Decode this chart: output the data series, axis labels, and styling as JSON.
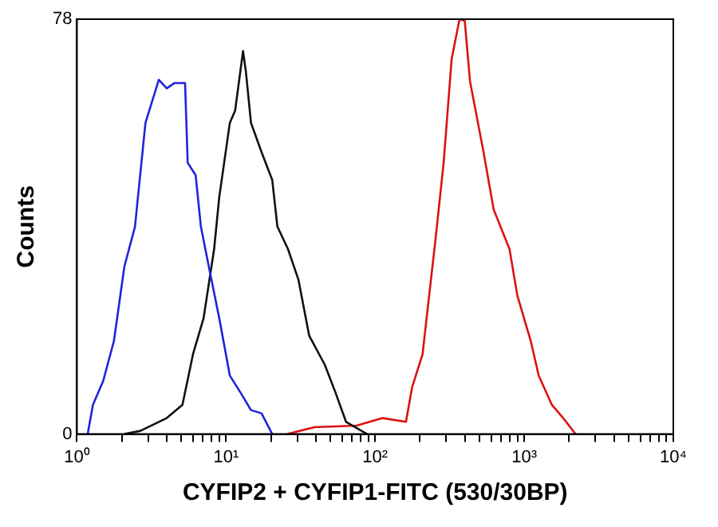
{
  "chart_data": {
    "type": "line",
    "xlabel": "CYFIP2 + CYFIP1-FITC (530/30BP)",
    "ylabel": "Counts",
    "log": "x",
    "xlim": [
      1,
      10000
    ],
    "ylim": [
      0,
      78
    ],
    "yticks": [
      0,
      78
    ],
    "xticks": [
      {
        "value": 1,
        "label": "10⁰"
      },
      {
        "value": 2,
        "label": null
      },
      {
        "value": 3,
        "label": null
      },
      {
        "value": 4,
        "label": null
      },
      {
        "value": 5,
        "label": null
      },
      {
        "value": 6,
        "label": null
      },
      {
        "value": 7,
        "label": null
      },
      {
        "value": 8,
        "label": null
      },
      {
        "value": 9,
        "label": null
      },
      {
        "value": 10,
        "label": "10¹"
      },
      {
        "value": 20,
        "label": null
      },
      {
        "value": 30,
        "label": null
      },
      {
        "value": 40,
        "label": null
      },
      {
        "value": 50,
        "label": null
      },
      {
        "value": 60,
        "label": null
      },
      {
        "value": 70,
        "label": null
      },
      {
        "value": 80,
        "label": null
      },
      {
        "value": 90,
        "label": null
      },
      {
        "value": 100,
        "label": "10²"
      },
      {
        "value": 200,
        "label": null
      },
      {
        "value": 300,
        "label": null
      },
      {
        "value": 400,
        "label": null
      },
      {
        "value": 500,
        "label": null
      },
      {
        "value": 600,
        "label": null
      },
      {
        "value": 700,
        "label": null
      },
      {
        "value": 800,
        "label": null
      },
      {
        "value": 900,
        "label": null
      },
      {
        "value": 1000,
        "label": "10³"
      },
      {
        "value": 2000,
        "label": null
      },
      {
        "value": 3000,
        "label": null
      },
      {
        "value": 4000,
        "label": null
      },
      {
        "value": 5000,
        "label": null
      },
      {
        "value": 6000,
        "label": null
      },
      {
        "value": 7000,
        "label": null
      },
      {
        "value": 8000,
        "label": null
      },
      {
        "value": 9000,
        "label": null
      },
      {
        "value": 10000,
        "label": "10⁴"
      }
    ],
    "grid": false,
    "legend": false,
    "marker": "none",
    "line_style": "solid",
    "series": [
      {
        "color": "#2222dd",
        "x": [
          1.18,
          1.28,
          1.5,
          1.77,
          2.08,
          2.45,
          2.88,
          3.54,
          4.0,
          4.52,
          5.31,
          5.53,
          6.25,
          6.78,
          7.66,
          9.0,
          10.6,
          12.5,
          14.7,
          17.3,
          20.4
        ],
        "values": [
          0,
          5.5,
          10,
          17.5,
          31.5,
          39,
          58.5,
          66.6,
          65,
          66,
          66,
          51,
          48.7,
          39,
          31.5,
          21.8,
          11,
          7.8,
          4.5,
          3.9,
          0
        ]
      },
      {
        "color": "#111111",
        "x": [
          2.08,
          2.66,
          4.0,
          5.1,
          6.0,
          7.07,
          8.32,
          9.0,
          10.6,
          11.5,
          13.0,
          13.6,
          14.7,
          17.3,
          20.4,
          22.1,
          26.0,
          30.6,
          36.1,
          46.0,
          54.2,
          63.8,
          88.3
        ],
        "values": [
          0,
          0.6,
          3,
          5.5,
          15,
          21.8,
          34.8,
          44.5,
          58.5,
          60.8,
          72,
          68,
          58.5,
          53,
          47.8,
          39,
          34.8,
          29,
          18.5,
          13,
          7.8,
          2.3,
          0
        ]
      },
      {
        "color": "#dd1111",
        "x": [
          25.8,
          39.1,
          75.2,
          112,
          161,
          177,
          208,
          226,
          255,
          288,
          326,
          368,
          399,
          433,
          531,
          624,
          796,
          900,
          1106,
          1250,
          1531,
          1803,
          2208
        ],
        "values": [
          0,
          1.3,
          1.6,
          3,
          2.3,
          8.8,
          15,
          24,
          37,
          51,
          70.5,
          78,
          77.7,
          66.3,
          53.3,
          42.2,
          34.8,
          26,
          17.5,
          11,
          5.5,
          3.2,
          0
        ]
      }
    ]
  }
}
